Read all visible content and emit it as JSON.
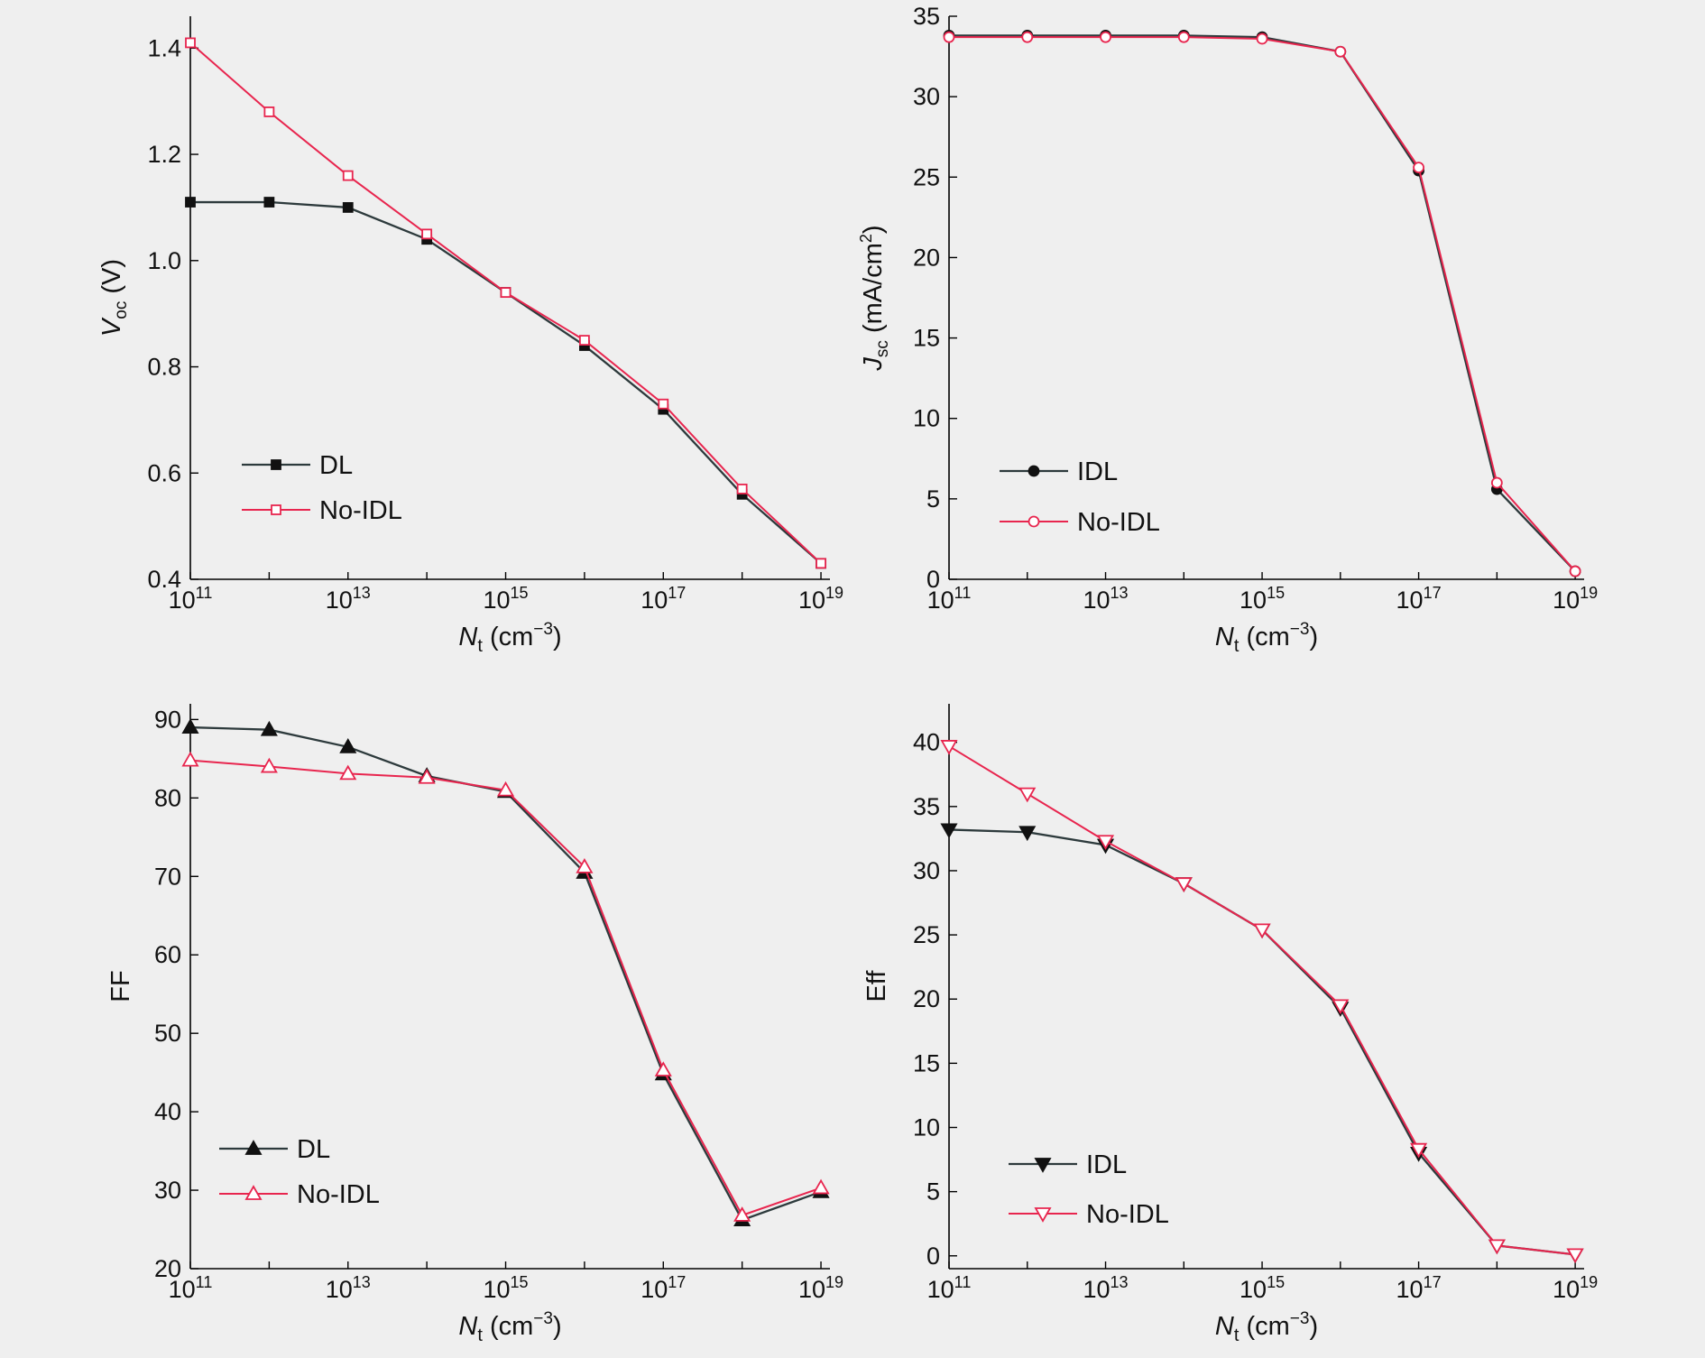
{
  "colors": {
    "background": "#efefef",
    "with_layer": "#111111",
    "with_layer_line": "#2d3a3c",
    "no_layer": "#e8254e"
  },
  "chart_data": [
    {
      "type": "line",
      "panel": "top-left",
      "x_scale": "log",
      "x": [
        100000000000.0,
        1000000000000.0,
        10000000000000.0,
        100000000000000.0,
        1000000000000000.0,
        1e+16,
        1e+17,
        1e+18,
        1e+19
      ],
      "x_ticks": [
        {
          "value": 100000000000.0,
          "base": "10",
          "exp": "11"
        },
        {
          "value": 10000000000000.0,
          "base": "10",
          "exp": "13"
        },
        {
          "value": 1000000000000000.0,
          "base": "10",
          "exp": "15"
        },
        {
          "value": 1e+17,
          "base": "10",
          "exp": "17"
        },
        {
          "value": 1e+19,
          "base": "10",
          "exp": "19"
        }
      ],
      "xlim": [
        100000000000.0,
        1.3e+19
      ],
      "xlabel": {
        "main": "N",
        "sub": "t",
        "unit": " (cm",
        "unit_sup": "−3",
        "unit_end": ")"
      },
      "ylabel": {
        "main": "V",
        "sub": "oc",
        "unit": " (V)"
      },
      "ylim": [
        0.4,
        1.46
      ],
      "y_ticks": [
        "0.4",
        "0.6",
        "0.8",
        "1.0",
        "1.2",
        "1.4"
      ],
      "grid": false,
      "legend_position": "lower-left",
      "series": [
        {
          "name": "DL",
          "marker": "square-filled",
          "values": [
            1.11,
            1.11,
            1.1,
            1.04,
            0.94,
            0.84,
            0.72,
            0.56,
            0.43
          ]
        },
        {
          "name": "No-IDL",
          "marker": "square-open",
          "values": [
            1.41,
            1.28,
            1.16,
            1.05,
            0.94,
            0.85,
            0.73,
            0.57,
            0.43
          ]
        }
      ]
    },
    {
      "type": "line",
      "panel": "top-right",
      "x_scale": "log",
      "x": [
        100000000000.0,
        1000000000000.0,
        10000000000000.0,
        100000000000000.0,
        1000000000000000.0,
        1e+16,
        1e+17,
        1e+18,
        1e+19
      ],
      "x_ticks": [
        {
          "value": 100000000000.0,
          "base": "10",
          "exp": "11"
        },
        {
          "value": 10000000000000.0,
          "base": "10",
          "exp": "13"
        },
        {
          "value": 1000000000000000.0,
          "base": "10",
          "exp": "15"
        },
        {
          "value": 1e+17,
          "base": "10",
          "exp": "17"
        },
        {
          "value": 1e+19,
          "base": "10",
          "exp": "19"
        }
      ],
      "xlim": [
        100000000000.0,
        1.3e+19
      ],
      "xlabel": {
        "main": "N",
        "sub": "t",
        "unit": " (cm",
        "unit_sup": "−3",
        "unit_end": ")"
      },
      "ylabel": {
        "main": "J",
        "sub": "sc",
        "unit": " (mA/cm",
        "unit_sup": "2",
        "unit_end": ")"
      },
      "ylim": [
        0,
        35
      ],
      "y_ticks": [
        "0",
        "5",
        "10",
        "15",
        "20",
        "25",
        "30",
        "35"
      ],
      "grid": false,
      "legend_position": "lower-left",
      "series": [
        {
          "name": "IDL",
          "marker": "circle-filled",
          "values": [
            33.8,
            33.8,
            33.8,
            33.8,
            33.7,
            32.8,
            25.4,
            5.6,
            0.5
          ]
        },
        {
          "name": "No-IDL",
          "marker": "circle-open",
          "values": [
            33.7,
            33.7,
            33.7,
            33.7,
            33.6,
            32.8,
            25.6,
            6.0,
            0.5
          ]
        }
      ]
    },
    {
      "type": "line",
      "panel": "bottom-left",
      "x_scale": "log",
      "x": [
        100000000000.0,
        1000000000000.0,
        10000000000000.0,
        100000000000000.0,
        1000000000000000.0,
        1e+16,
        1e+17,
        1e+18,
        1e+19
      ],
      "x_ticks": [
        {
          "value": 100000000000.0,
          "base": "10",
          "exp": "11"
        },
        {
          "value": 10000000000000.0,
          "base": "10",
          "exp": "13"
        },
        {
          "value": 1000000000000000.0,
          "base": "10",
          "exp": "15"
        },
        {
          "value": 1e+17,
          "base": "10",
          "exp": "17"
        },
        {
          "value": 1e+19,
          "base": "10",
          "exp": "19"
        }
      ],
      "xlim": [
        100000000000.0,
        1.3e+19
      ],
      "xlabel": {
        "main": "N",
        "sub": "t",
        "unit": " (cm",
        "unit_sup": "−3",
        "unit_end": ")"
      },
      "ylabel": {
        "main": "FF",
        "sub": "",
        "unit": ""
      },
      "ylim": [
        20,
        92
      ],
      "y_ticks": [
        "20",
        "30",
        "40",
        "50",
        "60",
        "70",
        "80",
        "90"
      ],
      "grid": false,
      "legend_position": "lower-left",
      "series": [
        {
          "name": "DL",
          "marker": "triangle-up-filled",
          "values": [
            89.0,
            88.7,
            86.5,
            82.8,
            80.8,
            70.5,
            44.8,
            26.2,
            29.8
          ]
        },
        {
          "name": "No-IDL",
          "marker": "triangle-up-open",
          "values": [
            84.8,
            84.0,
            83.1,
            82.6,
            81.0,
            71.2,
            45.3,
            26.8,
            30.3
          ]
        }
      ]
    },
    {
      "type": "line",
      "panel": "bottom-right",
      "x_scale": "log",
      "x": [
        100000000000.0,
        1000000000000.0,
        10000000000000.0,
        100000000000000.0,
        1000000000000000.0,
        1e+16,
        1e+17,
        1e+18,
        1e+19
      ],
      "x_ticks": [
        {
          "value": 100000000000.0,
          "base": "10",
          "exp": "11"
        },
        {
          "value": 10000000000000.0,
          "base": "10",
          "exp": "13"
        },
        {
          "value": 1000000000000000.0,
          "base": "10",
          "exp": "15"
        },
        {
          "value": 1e+17,
          "base": "10",
          "exp": "17"
        },
        {
          "value": 1e+19,
          "base": "10",
          "exp": "19"
        }
      ],
      "xlim": [
        100000000000.0,
        1.3e+19
      ],
      "xlabel": {
        "main": "N",
        "sub": "t",
        "unit": " (cm",
        "unit_sup": "−3",
        "unit_end": ")"
      },
      "ylabel": {
        "main": "Eff",
        "sub": "",
        "unit": ""
      },
      "ylim": [
        -1,
        43
      ],
      "y_ticks": [
        "0",
        "5",
        "10",
        "15",
        "20",
        "25",
        "30",
        "35",
        "40"
      ],
      "grid": false,
      "legend_position": "lower-left",
      "series": [
        {
          "name": "IDL",
          "marker": "triangle-down-filled",
          "values": [
            33.2,
            33.0,
            32.0,
            29.0,
            25.4,
            19.3,
            8.0,
            0.8,
            0.1
          ]
        },
        {
          "name": "No-IDL",
          "marker": "triangle-down-open",
          "values": [
            39.7,
            36.0,
            32.3,
            29.0,
            25.4,
            19.5,
            8.3,
            0.8,
            0.1
          ]
        }
      ]
    }
  ]
}
